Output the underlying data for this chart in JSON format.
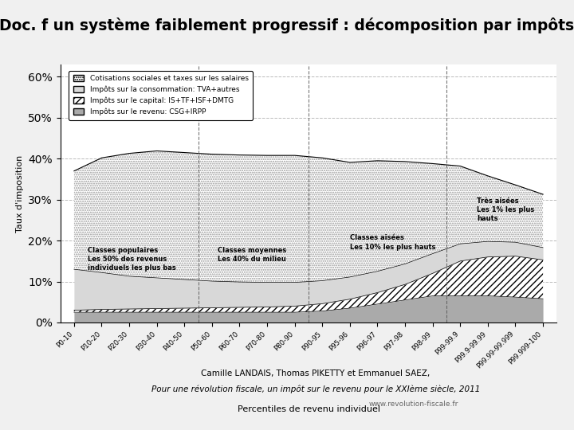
{
  "title": "Doc. f un système faiblement progressif : décomposition par impôts",
  "title_bg": "#f5d98b",
  "xlabel": "Percentiles de revenu individuel",
  "ylabel": "Taux d'imposition",
  "citation1": "Camille LANDAIS, Thomas PIKETTY et Emmanuel SAEZ,",
  "citation2": "Pour une révolution fiscale, un impôt sur le revenu pour le XXIème siècle, 2011",
  "citation3": "www.revolution-fiscale.fr",
  "x_labels": [
    "P0-10",
    "P10-20",
    "P20-30",
    "P30-40",
    "P40-50",
    "P50-60",
    "P60-70",
    "P70-80",
    "P80-90",
    "P90-95",
    "P95-96",
    "P96-97",
    "P97-98",
    "P98-99",
    "P99-99.9",
    "P99.9-99.99",
    "P99.99-99.999",
    "P99.999-100"
  ],
  "cotisations": [
    0.24,
    0.28,
    0.3,
    0.31,
    0.31,
    0.31,
    0.31,
    0.31,
    0.31,
    0.3,
    0.28,
    0.27,
    0.25,
    0.22,
    0.19,
    0.16,
    0.14,
    0.13
  ],
  "consommation": [
    0.1,
    0.09,
    0.08,
    0.075,
    0.07,
    0.065,
    0.062,
    0.06,
    0.058,
    0.056,
    0.054,
    0.052,
    0.05,
    0.048,
    0.042,
    0.038,
    0.034,
    0.03
  ],
  "capital": [
    0.005,
    0.007,
    0.008,
    0.009,
    0.01,
    0.011,
    0.012,
    0.013,
    0.015,
    0.018,
    0.022,
    0.028,
    0.038,
    0.055,
    0.085,
    0.095,
    0.1,
    0.095
  ],
  "revenu": [
    0.025,
    0.025,
    0.025,
    0.025,
    0.025,
    0.025,
    0.025,
    0.025,
    0.025,
    0.028,
    0.035,
    0.045,
    0.055,
    0.065,
    0.065,
    0.065,
    0.062,
    0.058
  ],
  "legend_labels": [
    "Cotisations sociales et taxes sur les salaires",
    "Impôts sur la consommation: TVA+autres",
    "Impôts sur le capital: IS+TF+ISF+DMTG",
    "Impôts sur le revenu: CSG+IRPP"
  ],
  "ylim": [
    0,
    0.63
  ],
  "vline_positions": [
    4.5,
    8.5,
    13.5
  ],
  "background_color": "#f0f0f0"
}
